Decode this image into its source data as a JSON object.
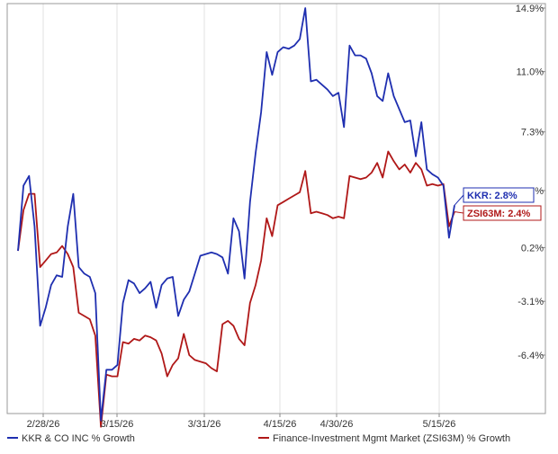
{
  "chart_data": {
    "type": "line",
    "title": "",
    "xlabel": "",
    "ylabel": "",
    "x_tick_labels": [
      "2/28/26",
      "3/15/26",
      "3/31/26",
      "4/15/26",
      "4/30/26",
      "5/15/26"
    ],
    "y_tick_labels": [
      "14.9%",
      "11.0%",
      "7.3%",
      "3.7%",
      "0.2%",
      "-3.1%",
      "-6.4%"
    ],
    "y_ticks": [
      14.9,
      11.0,
      7.3,
      3.7,
      0.2,
      -3.1,
      -6.4
    ],
    "ylim": [
      -10.0,
      15.0
    ],
    "grid": "vertical",
    "legend_position": "bottom",
    "series": [
      {
        "name": "KKR & CO INC % Growth",
        "color": "#1f2fb0",
        "end_label": "KKR: 2.8%",
        "values": [
          0,
          4.0,
          4.6,
          1.5,
          -4.6,
          -3.5,
          -2.1,
          -1.5,
          -1.6,
          1.5,
          3.5,
          -1.0,
          -1.4,
          -1.6,
          -2.6,
          -10.4,
          -7.3,
          -7.3,
          -7.0,
          -3.2,
          -1.8,
          -2.0,
          -2.6,
          -2.3,
          -1.9,
          -3.5,
          -2.1,
          -1.7,
          -1.6,
          -4.0,
          -3.0,
          -2.5,
          -1.4,
          -0.3,
          -0.2,
          -0.1,
          -0.2,
          -0.4,
          -1.4,
          2.0,
          1.2,
          -1.7,
          3.0,
          6.0,
          8.5,
          12.2,
          10.8,
          12.2,
          12.5,
          12.4,
          12.6,
          13.0,
          14.9,
          10.4,
          10.5,
          10.2,
          9.9,
          9.5,
          9.7,
          7.6,
          12.6,
          12.0,
          12.0,
          11.8,
          10.9,
          9.5,
          9.2,
          10.9,
          9.5,
          8.7,
          7.9,
          8.0,
          5.8,
          7.9,
          5.0,
          4.7,
          4.5,
          4.0,
          0.8,
          2.8
        ]
      },
      {
        "name": "Finance-Investment Mgmt Market (ZSI63M) % Growth",
        "color": "#b01818",
        "end_label": "ZSI63M: 2.4%",
        "values": [
          0,
          2.5,
          3.5,
          3.5,
          -1.0,
          -0.6,
          -0.2,
          -0.1,
          0.3,
          -0.2,
          -1.0,
          -3.8,
          -4.0,
          -4.2,
          -5.2,
          -10.8,
          -7.6,
          -7.7,
          -7.7,
          -5.6,
          -5.7,
          -5.4,
          -5.5,
          -5.2,
          -5.3,
          -5.5,
          -6.3,
          -7.7,
          -7.0,
          -6.6,
          -5.1,
          -6.4,
          -6.7,
          -6.8,
          -6.9,
          -7.2,
          -7.4,
          -4.5,
          -4.3,
          -4.6,
          -5.4,
          -5.8,
          -3.2,
          -2.1,
          -0.6,
          2.0,
          0.9,
          2.8,
          3.0,
          3.2,
          3.4,
          3.6,
          4.9,
          2.3,
          2.4,
          2.3,
          2.2,
          2.0,
          2.1,
          2.0,
          4.6,
          4.5,
          4.4,
          4.5,
          4.8,
          5.4,
          4.5,
          6.1,
          5.5,
          5.0,
          5.3,
          4.8,
          5.4,
          5.0,
          4.0,
          4.1,
          4.0,
          4.1,
          1.5,
          2.4
        ]
      }
    ]
  }
}
